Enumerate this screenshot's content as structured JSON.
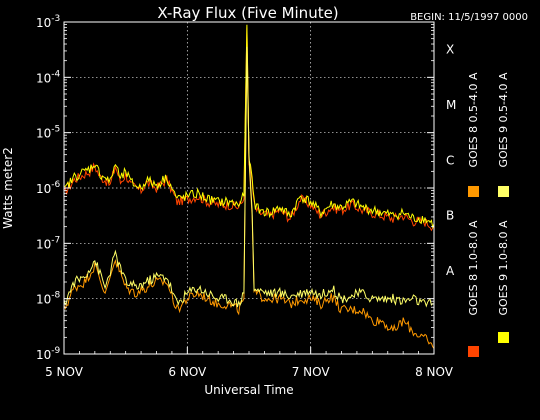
{
  "chart_data": {
    "type": "line",
    "title": "X-Ray Flux (Five Minute)",
    "subtitle": "BEGIN: 11/5/1997 0000",
    "xlabel": "Universal Time",
    "ylabel": "Watts meter2",
    "x_unit": "hours since begin",
    "xlim": [
      0,
      72
    ],
    "ylim_log10": [
      -9,
      -3
    ],
    "y_scale": "log",
    "grid": true,
    "x_ticks": [
      {
        "label": "5 NOV",
        "value": 0
      },
      {
        "label": "6 NOV",
        "value": 24
      },
      {
        "label": "7 NOV",
        "value": 48
      },
      {
        "label": "8 NOV",
        "value": 72
      }
    ],
    "y_ticks": [
      {
        "base": "10",
        "exp": "-9",
        "value": -9
      },
      {
        "base": "10",
        "exp": "-8",
        "value": -8
      },
      {
        "base": "10",
        "exp": "-7",
        "value": -7
      },
      {
        "base": "10",
        "exp": "-6",
        "value": -6
      },
      {
        "base": "10",
        "exp": "-5",
        "value": -5
      },
      {
        "base": "10",
        "exp": "-4",
        "value": -4
      },
      {
        "base": "10",
        "exp": "-3",
        "value": -3
      }
    ],
    "flare_classes": [
      {
        "label": "A",
        "value": -8
      },
      {
        "label": "B",
        "value": -7
      },
      {
        "label": "C",
        "value": -6
      },
      {
        "label": "M",
        "value": -5
      },
      {
        "label": "X",
        "value": -4
      }
    ],
    "legend_placement": "right",
    "series": [
      {
        "name": "GOES 8 1.0-8.0 A",
        "color": "#ff4400",
        "x": [
          0,
          2,
          4,
          5,
          6,
          7,
          8,
          9,
          10,
          11,
          12,
          13,
          14,
          15,
          16,
          18,
          20,
          22,
          24,
          26,
          28,
          30,
          32,
          34,
          35,
          35.6,
          36,
          36.6,
          37,
          37.5,
          38,
          40,
          42,
          44,
          46,
          48,
          50,
          52,
          54,
          56,
          58,
          60,
          62,
          64,
          66,
          68,
          70,
          72
        ],
        "log_y": [
          -6.1,
          -5.85,
          -5.75,
          -5.7,
          -5.6,
          -5.8,
          -5.85,
          -5.95,
          -5.6,
          -5.9,
          -5.75,
          -5.95,
          -6.0,
          -6.05,
          -5.9,
          -6.0,
          -5.85,
          -6.25,
          -6.2,
          -6.15,
          -6.25,
          -6.3,
          -6.3,
          -6.35,
          -6.2,
          -3.1,
          -5.5,
          -5.9,
          -6.3,
          -6.4,
          -6.45,
          -6.5,
          -6.4,
          -6.55,
          -6.2,
          -6.3,
          -6.5,
          -6.35,
          -6.4,
          -6.3,
          -6.4,
          -6.45,
          -6.5,
          -6.55,
          -6.5,
          -6.6,
          -6.6,
          -6.7
        ]
      },
      {
        "name": "GOES 8 0.5-4.0 A",
        "color": "#ff9900",
        "x": [
          0,
          2,
          4,
          6,
          8,
          10,
          12,
          14,
          16,
          18,
          20,
          22,
          24,
          26,
          28,
          30,
          32,
          34,
          35,
          35.6,
          36,
          36.6,
          37,
          38,
          40,
          42,
          44,
          46,
          48,
          50,
          52,
          54,
          56,
          58,
          60,
          62,
          64,
          66,
          68,
          70,
          72
        ],
        "log_y": [
          -8.2,
          -7.8,
          -7.7,
          -7.4,
          -7.9,
          -7.3,
          -7.8,
          -7.9,
          -7.8,
          -7.7,
          -7.7,
          -8.2,
          -8.0,
          -7.9,
          -8.0,
          -8.1,
          -8.1,
          -8.2,
          -8.0,
          -3.5,
          -5.5,
          -6.5,
          -7.9,
          -7.95,
          -8.0,
          -8.0,
          -8.1,
          -8.0,
          -8.0,
          -8.1,
          -7.95,
          -8.2,
          -8.2,
          -8.2,
          -8.4,
          -8.4,
          -8.6,
          -8.4,
          -8.6,
          -8.7,
          -8.9
        ]
      },
      {
        "name": "GOES 9 1.0-8.0 A",
        "color": "#ffff00",
        "x": [
          0,
          2,
          4,
          5,
          6,
          7,
          8,
          9,
          10,
          11,
          12,
          13,
          14,
          15,
          16,
          18,
          20,
          22,
          24,
          26,
          28,
          30,
          32,
          34,
          35,
          35.6,
          36,
          36.6,
          37,
          37.5,
          38,
          40,
          42,
          44,
          46,
          48,
          50,
          52,
          54,
          56,
          58,
          60,
          62,
          64,
          66,
          68,
          70,
          72
        ],
        "log_y": [
          -6.05,
          -5.8,
          -5.7,
          -5.65,
          -5.55,
          -5.75,
          -5.8,
          -5.9,
          -5.55,
          -5.85,
          -5.7,
          -5.9,
          -5.95,
          -6.0,
          -5.85,
          -5.95,
          -5.8,
          -6.2,
          -6.15,
          -6.1,
          -6.2,
          -6.25,
          -6.25,
          -6.3,
          -6.15,
          -3.05,
          -5.45,
          -5.85,
          -6.25,
          -6.35,
          -6.4,
          -6.45,
          -6.35,
          -6.5,
          -6.15,
          -6.25,
          -6.45,
          -6.3,
          -6.35,
          -6.25,
          -6.35,
          -6.4,
          -6.45,
          -6.5,
          -6.45,
          -6.55,
          -6.55,
          -6.65
        ]
      },
      {
        "name": "GOES 9 0.5-4.0 A",
        "color": "#ffff66",
        "x": [
          0,
          2,
          4,
          6,
          8,
          10,
          12,
          14,
          16,
          18,
          20,
          22,
          24,
          26,
          28,
          30,
          32,
          34,
          35,
          35.6,
          36,
          36.6,
          37,
          38,
          40,
          42,
          44,
          46,
          48,
          50,
          52,
          54,
          56,
          58,
          60,
          62,
          64,
          66,
          68,
          70,
          72
        ],
        "log_y": [
          -8.1,
          -7.7,
          -7.6,
          -7.3,
          -7.8,
          -7.2,
          -7.7,
          -7.8,
          -7.7,
          -7.6,
          -7.6,
          -8.1,
          -7.9,
          -7.8,
          -7.9,
          -8.0,
          -8.0,
          -8.1,
          -7.9,
          -3.45,
          -5.4,
          -6.4,
          -7.8,
          -7.85,
          -7.9,
          -7.9,
          -7.95,
          -7.9,
          -7.85,
          -7.95,
          -7.8,
          -8.0,
          -7.95,
          -7.9,
          -8.0,
          -8.0,
          -8.0,
          -8.05,
          -8.0,
          -8.1,
          -8.1
        ]
      }
    ]
  }
}
